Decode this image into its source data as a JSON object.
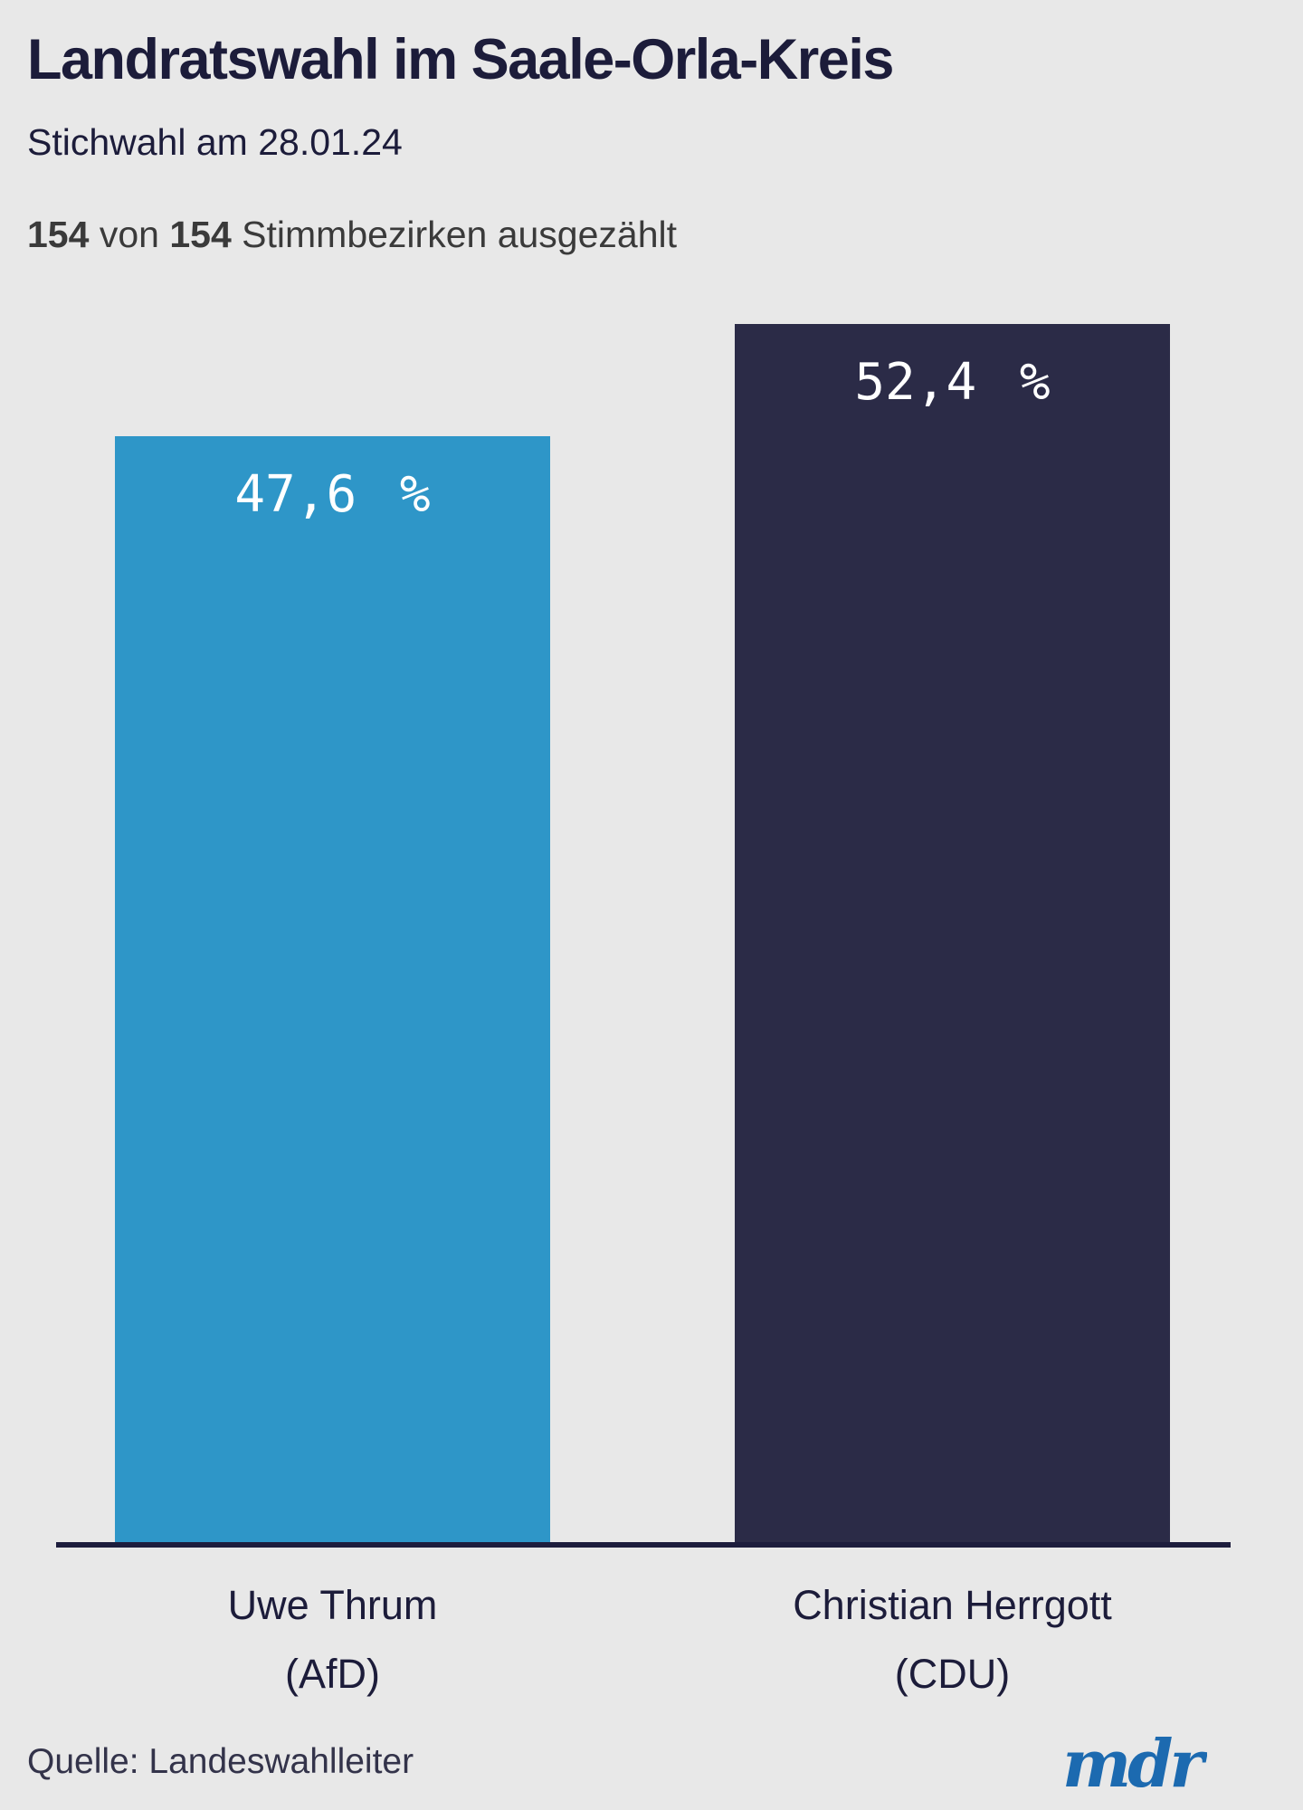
{
  "header": {
    "title": "Landratswahl im Saale-Orla-Kreis",
    "subtitle": "Stichwahl am 28.01.24",
    "status": {
      "counted": "154",
      "connector": "von",
      "total": "154",
      "suffix": "Stimmbezirken ausgezählt"
    }
  },
  "chart_data": {
    "type": "bar",
    "title": "Landratswahl im Saale-Orla-Kreis",
    "subtitle": "Stichwahl am 28.01.24",
    "status_line": "154 von 154 Stimmbezirken ausgezählt",
    "categories": [
      "Uwe Thrum (AfD)",
      "Christian Herrgott (CDU)"
    ],
    "values": [
      47.6,
      52.4
    ],
    "unit": "%",
    "ylim": [
      0,
      52.4
    ],
    "grid": false,
    "legend": "none",
    "bars": [
      {
        "name": "Uwe Thrum",
        "party": "(AfD)",
        "value": 47.6,
        "value_label": "47,6 %",
        "color": "#2e96c8"
      },
      {
        "name": "Christian Herrgott",
        "party": "(CDU)",
        "value": 52.4,
        "value_label": "52,4 %",
        "color": "#2b2b47"
      }
    ]
  },
  "footer": {
    "source": "Quelle: Landeswahlleiter",
    "logo_text": "mdr"
  },
  "colors": {
    "background": "#e8e8e8",
    "heading": "#1c1c3a",
    "status_text": "#3a3a3a",
    "axis": "#1d1d3d",
    "value_text": "#ffffff",
    "logo_blue": "#1c6ab0"
  }
}
